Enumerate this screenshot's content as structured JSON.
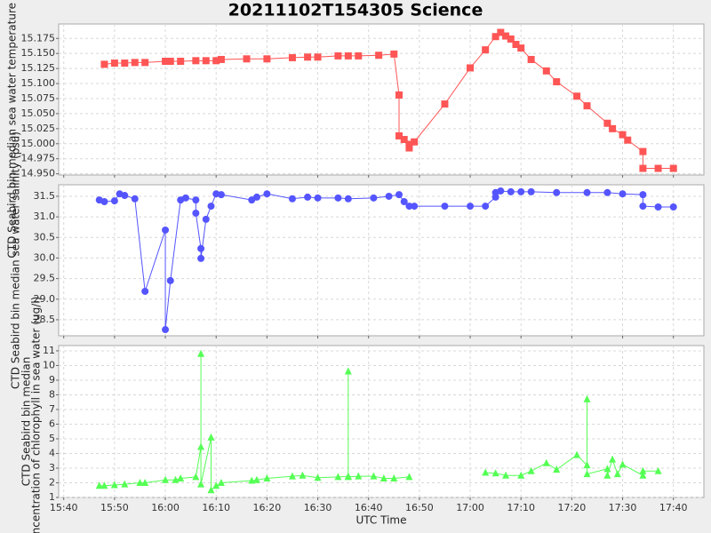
{
  "chart_data": [
    {
      "type": "line",
      "title": "20211102T154305 Science",
      "ylabel": "CTD Seabird bin median sea water temperature (degree_C)",
      "marker": "square",
      "grid": true,
      "ylim": [
        14.948,
        15.199
      ],
      "yticks": [
        {
          "value": 14.95,
          "label": "14.950"
        },
        14.975,
        {
          "value": 15.0,
          "label": "15.000"
        },
        15.025,
        {
          "value": 15.05,
          "label": "15.050"
        },
        15.075,
        {
          "value": 15.1,
          "label": "15.100"
        },
        15.125,
        {
          "value": 15.15,
          "label": "15.150"
        },
        15.175
      ],
      "x": [
        "15:48",
        "15:50",
        "15:52",
        "15:54",
        "15:56",
        "16:00",
        "16:01",
        "16:03",
        "16:06",
        "16:08",
        "16:10",
        "16:11",
        "16:16",
        "16:20",
        "16:25",
        "16:28",
        "16:30",
        "16:34",
        "16:36",
        "16:38",
        "16:42",
        "16:45",
        "16:46",
        "16:46",
        "16:47",
        "16:48",
        "16:48",
        "16:49",
        "16:55",
        "17:00",
        "17:03",
        "17:05",
        "17:06",
        "17:07",
        "17:08",
        "17:09",
        "17:10",
        "17:12",
        "17:15",
        "17:17",
        "17:21",
        "17:23",
        "17:27",
        "17:28",
        "17:30",
        "17:31",
        "17:34",
        "17:34",
        "17:37",
        "17:40"
      ],
      "series": [
        {
          "name": "temperature",
          "color": "#ff5555",
          "values": [
            15.132,
            15.134,
            15.134,
            15.135,
            15.135,
            15.137,
            15.137,
            15.137,
            15.138,
            15.138,
            15.138,
            15.14,
            15.141,
            15.141,
            15.143,
            15.144,
            15.144,
            15.146,
            15.146,
            15.146,
            15.147,
            15.149,
            15.081,
            15.013,
            15.007,
            14.999,
            14.993,
            15.003,
            15.066,
            15.126,
            15.156,
            15.178,
            15.185,
            15.179,
            15.174,
            15.165,
            15.159,
            15.14,
            15.121,
            15.103,
            15.079,
            15.063,
            15.034,
            15.025,
            15.015,
            15.006,
            14.987,
            14.959,
            14.959,
            14.959
          ]
        }
      ]
    },
    {
      "type": "line",
      "ylabel": "CTD Seabird bin median sea water salinity (psu)",
      "marker": "circle",
      "grid": true,
      "ylim": [
        28.11,
        31.78
      ],
      "yticks": [
        28.5,
        {
          "value": 29.0,
          "label": "29.0"
        },
        29.5,
        {
          "value": 30.0,
          "label": "30.0"
        },
        30.5,
        {
          "value": 31.0,
          "label": "31.0"
        },
        31.5
      ],
      "x": [
        "15:47",
        "15:48",
        "15:50",
        "15:51",
        "15:52",
        "15:54",
        "15:56",
        "16:00",
        "16:00",
        "16:01",
        "16:03",
        "16:04",
        "16:06",
        "16:06",
        "16:07",
        "16:07",
        "16:08",
        "16:09",
        "16:10",
        "16:11",
        "16:17",
        "16:18",
        "16:20",
        "16:25",
        "16:28",
        "16:30",
        "16:34",
        "16:36",
        "16:41",
        "16:44",
        "16:46",
        "16:47",
        "16:48",
        "16:49",
        "16:55",
        "17:00",
        "17:03",
        "17:05",
        "17:05",
        "17:06",
        "17:08",
        "17:10",
        "17:12",
        "17:17",
        "17:23",
        "17:27",
        "17:30",
        "17:34",
        "17:34",
        "17:37",
        "17:40"
      ],
      "series": [
        {
          "name": "salinity",
          "color": "#5555ff",
          "values": [
            31.41,
            31.37,
            31.39,
            31.56,
            31.52,
            31.44,
            29.19,
            30.68,
            28.26,
            29.45,
            31.41,
            31.46,
            31.41,
            31.09,
            30.23,
            29.99,
            30.94,
            31.26,
            31.56,
            31.54,
            31.41,
            31.48,
            31.56,
            31.44,
            31.48,
            31.46,
            31.46,
            31.44,
            31.46,
            31.5,
            31.54,
            31.37,
            31.26,
            31.26,
            31.26,
            31.26,
            31.26,
            31.48,
            31.59,
            31.63,
            31.61,
            31.61,
            31.61,
            31.59,
            31.59,
            31.59,
            31.56,
            31.54,
            31.26,
            31.24,
            31.24
          ]
        }
      ]
    },
    {
      "type": "line",
      "ylabel": [
        "CTD Seabird bin median",
        "concentration of chlorophyll in sea water (ug/l)"
      ],
      "xlabel": "UTC Time",
      "marker": "triangle",
      "grid": true,
      "xlim": [
        "15:39",
        "17:46"
      ],
      "xticks": [
        "15:40",
        "15:50",
        "16:00",
        "16:10",
        "16:20",
        "16:30",
        "16:40",
        "16:50",
        "17:00",
        "17:10",
        "17:20",
        "17:30",
        "17:40"
      ],
      "ylim": [
        1,
        11.36
      ],
      "yticks": [
        1,
        2,
        3,
        4,
        5,
        6,
        7,
        8,
        9,
        10,
        11
      ],
      "x": [
        "15:47",
        "15:48",
        "15:50",
        "15:52",
        "15:55",
        "15:56",
        "16:00",
        "16:02",
        "16:03",
        "16:06",
        "16:07",
        "16:07",
        "16:07",
        "16:09",
        "16:09",
        "16:10",
        "16:11",
        "16:17",
        "16:18",
        "16:20",
        "16:25",
        "16:27",
        "16:30",
        "16:34",
        "16:36",
        "16:36",
        "16:36",
        "16:38",
        "16:41",
        "16:43",
        "16:45",
        "16:48",
        "16:55",
        "17:03",
        "17:05",
        "17:07",
        "17:10",
        "17:12",
        "17:15",
        "17:17",
        "17:21",
        "17:23",
        "17:23",
        "17:23",
        "17:27",
        "17:27",
        "17:28",
        "17:29",
        "17:30",
        "17:34",
        "17:34",
        "17:37"
      ],
      "series": [
        {
          "name": "chlorophyll",
          "color": "#55ff55",
          "values": [
            1.8,
            1.8,
            1.85,
            1.9,
            2.0,
            2.0,
            2.2,
            2.2,
            2.3,
            2.4,
            4.45,
            10.8,
            1.9,
            5.1,
            1.5,
            1.8,
            2.0,
            2.15,
            2.2,
            2.3,
            2.45,
            2.5,
            2.35,
            2.4,
            2.45,
            9.6,
            2.4,
            2.45,
            2.45,
            2.3,
            2.3,
            2.4,
            null,
            2.7,
            2.65,
            2.5,
            2.5,
            2.8,
            3.35,
            2.9,
            3.9,
            3.2,
            7.7,
            2.6,
            2.95,
            2.5,
            3.6,
            2.6,
            3.25,
            2.5,
            2.8,
            2.8
          ]
        }
      ]
    }
  ]
}
